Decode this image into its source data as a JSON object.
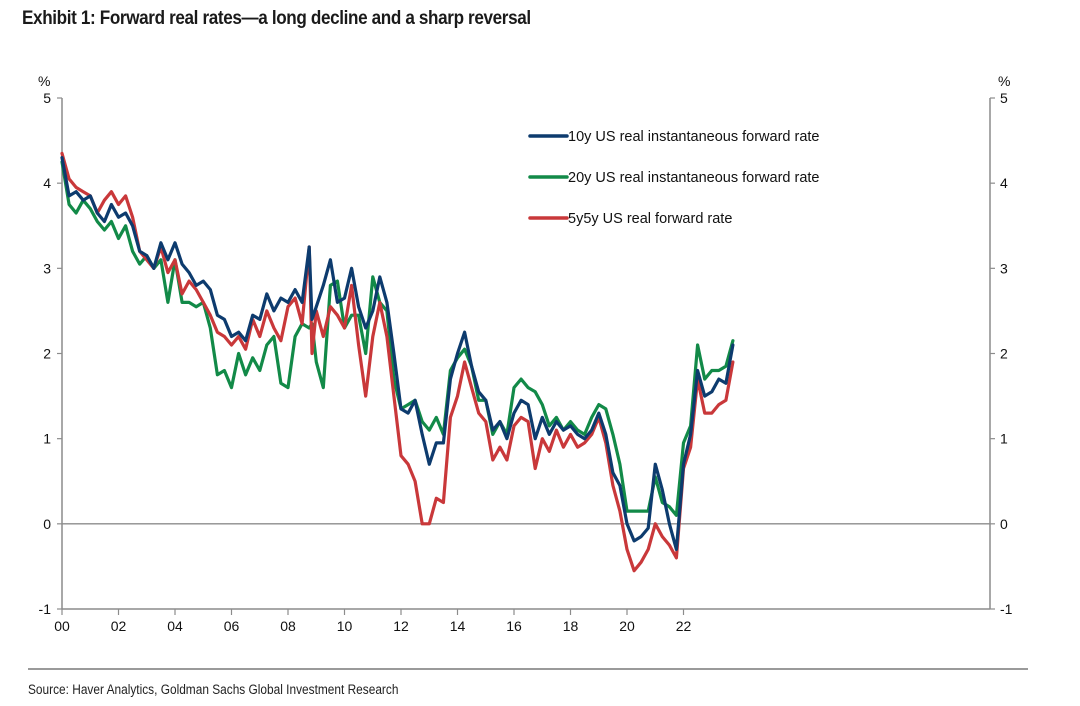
{
  "title": "Exhibit 1: Forward real rates—a long decline and a sharp reversal",
  "source": "Source: Haver Analytics, Goldman Sachs Global Investment Research",
  "chart_data": {
    "type": "line",
    "title": "Exhibit 1: Forward real rates—a long decline and a sharp reversal",
    "xlabel": "",
    "ylabel_left": "%",
    "ylabel_right": "%",
    "xlim": [
      2000,
      2024.1
    ],
    "ylim": [
      -1,
      5
    ],
    "yticks": [
      -1,
      0,
      1,
      2,
      3,
      4,
      5
    ],
    "xticks": [
      2000,
      2002,
      2004,
      2006,
      2008,
      2010,
      2012,
      2014,
      2016,
      2018,
      2020,
      2022
    ],
    "xtick_labels": [
      "00",
      "02",
      "04",
      "06",
      "08",
      "10",
      "12",
      "14",
      "16",
      "18",
      "20",
      "22"
    ],
    "zero_line": true,
    "grid": false,
    "legend_position": "top-right",
    "x": [
      2000.0,
      2000.25,
      2000.5,
      2000.75,
      2001.0,
      2001.25,
      2001.5,
      2001.75,
      2002.0,
      2002.25,
      2002.5,
      2002.75,
      2003.0,
      2003.25,
      2003.5,
      2003.75,
      2004.0,
      2004.25,
      2004.5,
      2004.75,
      2005.0,
      2005.25,
      2005.5,
      2005.75,
      2006.0,
      2006.25,
      2006.5,
      2006.75,
      2007.0,
      2007.25,
      2007.5,
      2007.75,
      2008.0,
      2008.25,
      2008.5,
      2008.75,
      2008.85,
      2009.0,
      2009.25,
      2009.5,
      2009.75,
      2010.0,
      2010.25,
      2010.5,
      2010.75,
      2011.0,
      2011.25,
      2011.5,
      2011.75,
      2012.0,
      2012.25,
      2012.5,
      2012.75,
      2013.0,
      2013.25,
      2013.5,
      2013.75,
      2014.0,
      2014.25,
      2014.5,
      2014.75,
      2015.0,
      2015.25,
      2015.5,
      2015.75,
      2016.0,
      2016.25,
      2016.5,
      2016.75,
      2017.0,
      2017.25,
      2017.5,
      2017.75,
      2018.0,
      2018.25,
      2018.5,
      2018.75,
      2019.0,
      2019.25,
      2019.5,
      2019.75,
      2020.0,
      2020.25,
      2020.5,
      2020.75,
      2021.0,
      2021.25,
      2021.5,
      2021.75,
      2022.0,
      2022.25,
      2022.5,
      2022.75,
      2023.0,
      2023.25,
      2023.5,
      2023.75
    ],
    "series": [
      {
        "name": "10y US real instantaneous forward rate",
        "color": "#0d3b6e",
        "values": [
          4.3,
          3.85,
          3.9,
          3.8,
          3.85,
          3.65,
          3.55,
          3.75,
          3.6,
          3.65,
          3.5,
          3.2,
          3.15,
          3.0,
          3.3,
          3.1,
          3.3,
          3.05,
          2.95,
          2.8,
          2.85,
          2.75,
          2.45,
          2.4,
          2.2,
          2.25,
          2.15,
          2.45,
          2.4,
          2.7,
          2.5,
          2.65,
          2.6,
          2.75,
          2.6,
          3.25,
          2.4,
          2.55,
          2.8,
          3.1,
          2.6,
          2.65,
          3.0,
          2.55,
          2.3,
          2.5,
          2.9,
          2.6,
          2.0,
          1.35,
          1.3,
          1.45,
          1.05,
          0.7,
          0.95,
          0.95,
          1.7,
          2.0,
          2.25,
          1.85,
          1.55,
          1.45,
          1.1,
          1.2,
          1.0,
          1.3,
          1.45,
          1.4,
          1.0,
          1.25,
          1.05,
          1.2,
          1.1,
          1.15,
          1.05,
          1.0,
          1.1,
          1.3,
          1.05,
          0.6,
          0.45,
          0.0,
          -0.2,
          -0.15,
          -0.05,
          0.7,
          0.4,
          0.0,
          -0.3,
          0.7,
          1.05,
          1.8,
          1.5,
          1.55,
          1.7,
          1.65,
          2.1
        ]
      },
      {
        "name": "20y US real instantaneous forward rate",
        "color": "#128a48",
        "values": [
          4.25,
          3.75,
          3.65,
          3.8,
          3.7,
          3.55,
          3.45,
          3.55,
          3.35,
          3.5,
          3.2,
          3.05,
          3.15,
          3.0,
          3.1,
          2.6,
          3.1,
          2.6,
          2.6,
          2.55,
          2.6,
          2.3,
          1.75,
          1.8,
          1.6,
          2.0,
          1.75,
          1.95,
          1.8,
          2.1,
          2.2,
          1.65,
          1.6,
          2.2,
          2.35,
          2.3,
          2.35,
          1.9,
          1.6,
          2.8,
          2.85,
          2.3,
          2.45,
          2.45,
          2.0,
          2.9,
          2.6,
          2.5,
          1.7,
          1.35,
          1.4,
          1.45,
          1.2,
          1.1,
          1.25,
          1.05,
          1.8,
          1.95,
          2.05,
          1.85,
          1.45,
          1.45,
          1.05,
          1.2,
          1.05,
          1.6,
          1.7,
          1.6,
          1.55,
          1.4,
          1.15,
          1.25,
          1.1,
          1.2,
          1.1,
          1.05,
          1.25,
          1.4,
          1.35,
          1.05,
          0.7,
          0.15,
          0.15,
          0.15,
          0.15,
          0.55,
          0.25,
          0.2,
          0.1,
          0.95,
          1.15,
          2.1,
          1.7,
          1.8,
          1.8,
          1.85,
          2.15
        ]
      },
      {
        "name": "5y5y US real forward rate",
        "color": "#c9383a",
        "values": [
          4.35,
          4.05,
          3.95,
          3.9,
          3.85,
          3.65,
          3.8,
          3.9,
          3.75,
          3.85,
          3.6,
          3.2,
          3.1,
          3.0,
          3.25,
          2.95,
          3.1,
          2.7,
          2.85,
          2.75,
          2.6,
          2.45,
          2.25,
          2.2,
          2.1,
          2.2,
          2.05,
          2.4,
          2.2,
          2.5,
          2.3,
          2.15,
          2.55,
          2.65,
          2.35,
          3.25,
          2.0,
          2.5,
          2.2,
          2.55,
          2.45,
          2.3,
          2.8,
          2.1,
          1.5,
          2.2,
          2.6,
          2.2,
          1.5,
          0.8,
          0.7,
          0.5,
          0.0,
          0.0,
          0.3,
          0.25,
          1.25,
          1.5,
          1.9,
          1.6,
          1.3,
          1.2,
          0.75,
          0.9,
          0.75,
          1.15,
          1.25,
          1.2,
          0.65,
          1.0,
          0.85,
          1.1,
          0.9,
          1.05,
          0.9,
          0.95,
          1.05,
          1.25,
          0.95,
          0.45,
          0.15,
          -0.3,
          -0.55,
          -0.45,
          -0.3,
          0.0,
          -0.15,
          -0.25,
          -0.4,
          0.65,
          0.9,
          1.7,
          1.3,
          1.3,
          1.4,
          1.45,
          1.9
        ]
      }
    ]
  }
}
